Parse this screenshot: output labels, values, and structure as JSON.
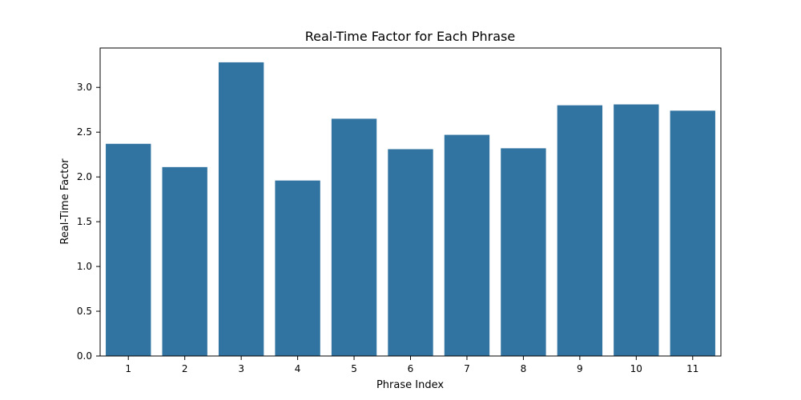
{
  "chart_data": {
    "type": "bar",
    "title": "Real-Time Factor for Each Phrase",
    "xlabel": "Phrase Index",
    "ylabel": "Real-Time Factor",
    "categories": [
      "1",
      "2",
      "3",
      "4",
      "5",
      "6",
      "7",
      "8",
      "9",
      "10",
      "11"
    ],
    "values": [
      2.37,
      2.11,
      3.28,
      1.96,
      2.65,
      2.31,
      2.47,
      2.32,
      2.8,
      2.81,
      2.74
    ],
    "ylim": [
      0,
      3.44
    ],
    "yticks": [
      "0.0",
      "0.5",
      "1.0",
      "1.5",
      "2.0",
      "2.5",
      "3.0"
    ],
    "grid": false,
    "bar_color": "#3274a1"
  }
}
